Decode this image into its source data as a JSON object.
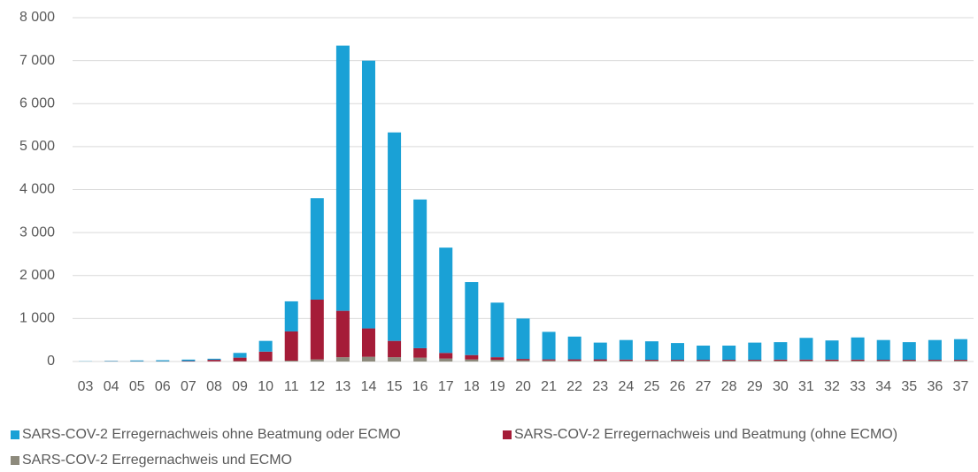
{
  "chart_data": {
    "type": "stacked_bar",
    "categories": [
      "03",
      "04",
      "05",
      "06",
      "07",
      "08",
      "09",
      "10",
      "11",
      "12",
      "13",
      "14",
      "15",
      "16",
      "17",
      "18",
      "19",
      "20",
      "21",
      "22",
      "23",
      "24",
      "25",
      "26",
      "27",
      "28",
      "29",
      "30",
      "31",
      "32",
      "33",
      "34",
      "35",
      "36",
      "37"
    ],
    "series": [
      {
        "name": "SARS-COV-2 Erregernachweis ohne Beatmung oder ECMO",
        "color": "#1aa1d6",
        "values": [
          5,
          10,
          20,
          25,
          35,
          25,
          110,
          250,
          700,
          2360,
          6170,
          6230,
          4850,
          3460,
          2450,
          1700,
          1270,
          940,
          640,
          530,
          390,
          455,
          430,
          390,
          330,
          330,
          400,
          405,
          505,
          445,
          515,
          460,
          410,
          460,
          480
        ]
      },
      {
        "name": "SARS-COV-2 Erregernachweis und Beatmung (ohne ECMO)",
        "color": "#a51c38",
        "values": [
          0,
          5,
          5,
          5,
          10,
          35,
          80,
          220,
          680,
          1390,
          1080,
          660,
          380,
          220,
          130,
          100,
          60,
          30,
          25,
          30,
          30,
          25,
          20,
          20,
          20,
          20,
          20,
          25,
          25,
          25,
          25,
          20,
          20,
          20,
          20
        ]
      },
      {
        "name": "SARS-COV-2 Erregernachweis und ECMO",
        "color": "#8d8a7c",
        "values": [
          0,
          0,
          0,
          0,
          0,
          5,
          10,
          10,
          20,
          50,
          100,
          110,
          100,
          90,
          70,
          50,
          40,
          30,
          25,
          20,
          20,
          20,
          20,
          20,
          20,
          20,
          20,
          20,
          20,
          20,
          20,
          20,
          20,
          20,
          20
        ]
      }
    ],
    "ylim": [
      0,
      8000
    ],
    "yticks": [
      0,
      {
        "value": 1000,
        "label": "1 000"
      },
      {
        "value": 2000,
        "label": "2 000"
      },
      {
        "value": 3000,
        "label": "3 000"
      },
      {
        "value": 4000,
        "label": "4 000"
      },
      {
        "value": 5000,
        "label": "5 000"
      },
      {
        "value": 6000,
        "label": "6 000"
      },
      {
        "value": 7000,
        "label": "7 000"
      },
      {
        "value": 8000,
        "label": "8 000"
      }
    ],
    "grid": true,
    "legend": "bottom"
  }
}
